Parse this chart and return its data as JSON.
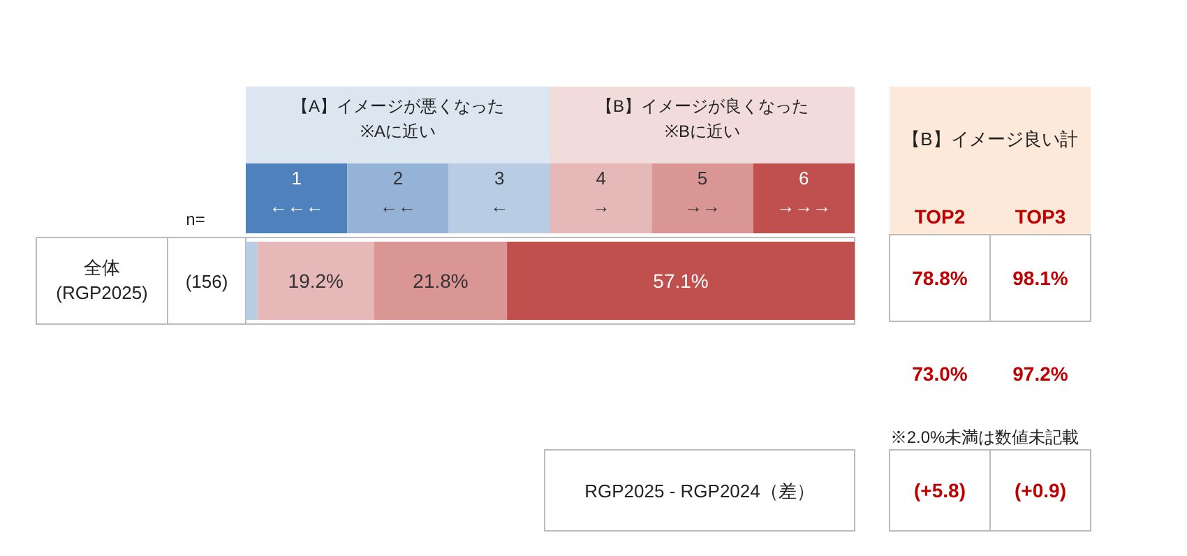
{
  "chart_data": [
    {
      "type": "bar",
      "orientation": "horizontal",
      "stacked": true,
      "xlim": [
        0,
        100
      ],
      "categories": [
        "全体\n(RGP2025)"
      ],
      "series": [
        {
          "color": "#4f81bd",
          "values": [
            0
          ],
          "value_labels": [
            null
          ]
        },
        {
          "color": "#95b3d7",
          "values": [
            0
          ],
          "value_labels": [
            null
          ]
        },
        {
          "color": "#b8cce4",
          "values": [
            1.9
          ],
          "value_labels": [
            null
          ]
        },
        {
          "color": "#e6b9b8",
          "values": [
            19.2
          ],
          "value_labels": [
            "19.2%"
          ]
        },
        {
          "color": "#da9694",
          "values": [
            21.8
          ],
          "value_labels": [
            "21.8%"
          ]
        },
        {
          "color": "#c0504d",
          "values": [
            57.1
          ],
          "value_labels": [
            "57.1%"
          ]
        }
      ],
      "annotations": [
        "【A】イメージが悪くなった\n※Aに近い",
        "【B】イメージが良くなった\n※Bに近い",
        "n=",
        "(156)",
        "1\n←←←",
        "2\n←←",
        "3\n←",
        "4\n→",
        "5\n→→",
        "6\n→→→"
      ]
    },
    {
      "type": "other",
      "title": "【B】イメージ良い計",
      "categories": [
        "TOP2",
        "TOP3"
      ],
      "series": [
        {
          "color": "#c00000",
          "values": [
            78.8,
            98.1
          ],
          "value_labels": [
            "78.8%",
            "98.1%"
          ]
        },
        {
          "color": "#c00000",
          "values": [
            73.0,
            97.2
          ],
          "value_labels": [
            "73.0%",
            "97.2%"
          ]
        },
        {
          "color": "#c00000",
          "values": [
            5.8,
            0.9
          ],
          "value_labels": [
            "(+5.8)",
            "(+0.9)"
          ]
        }
      ],
      "annotations": [
        "※2.0%未満は数値未記載",
        "RGP2025 - RGP2024（差）"
      ]
    }
  ]
}
